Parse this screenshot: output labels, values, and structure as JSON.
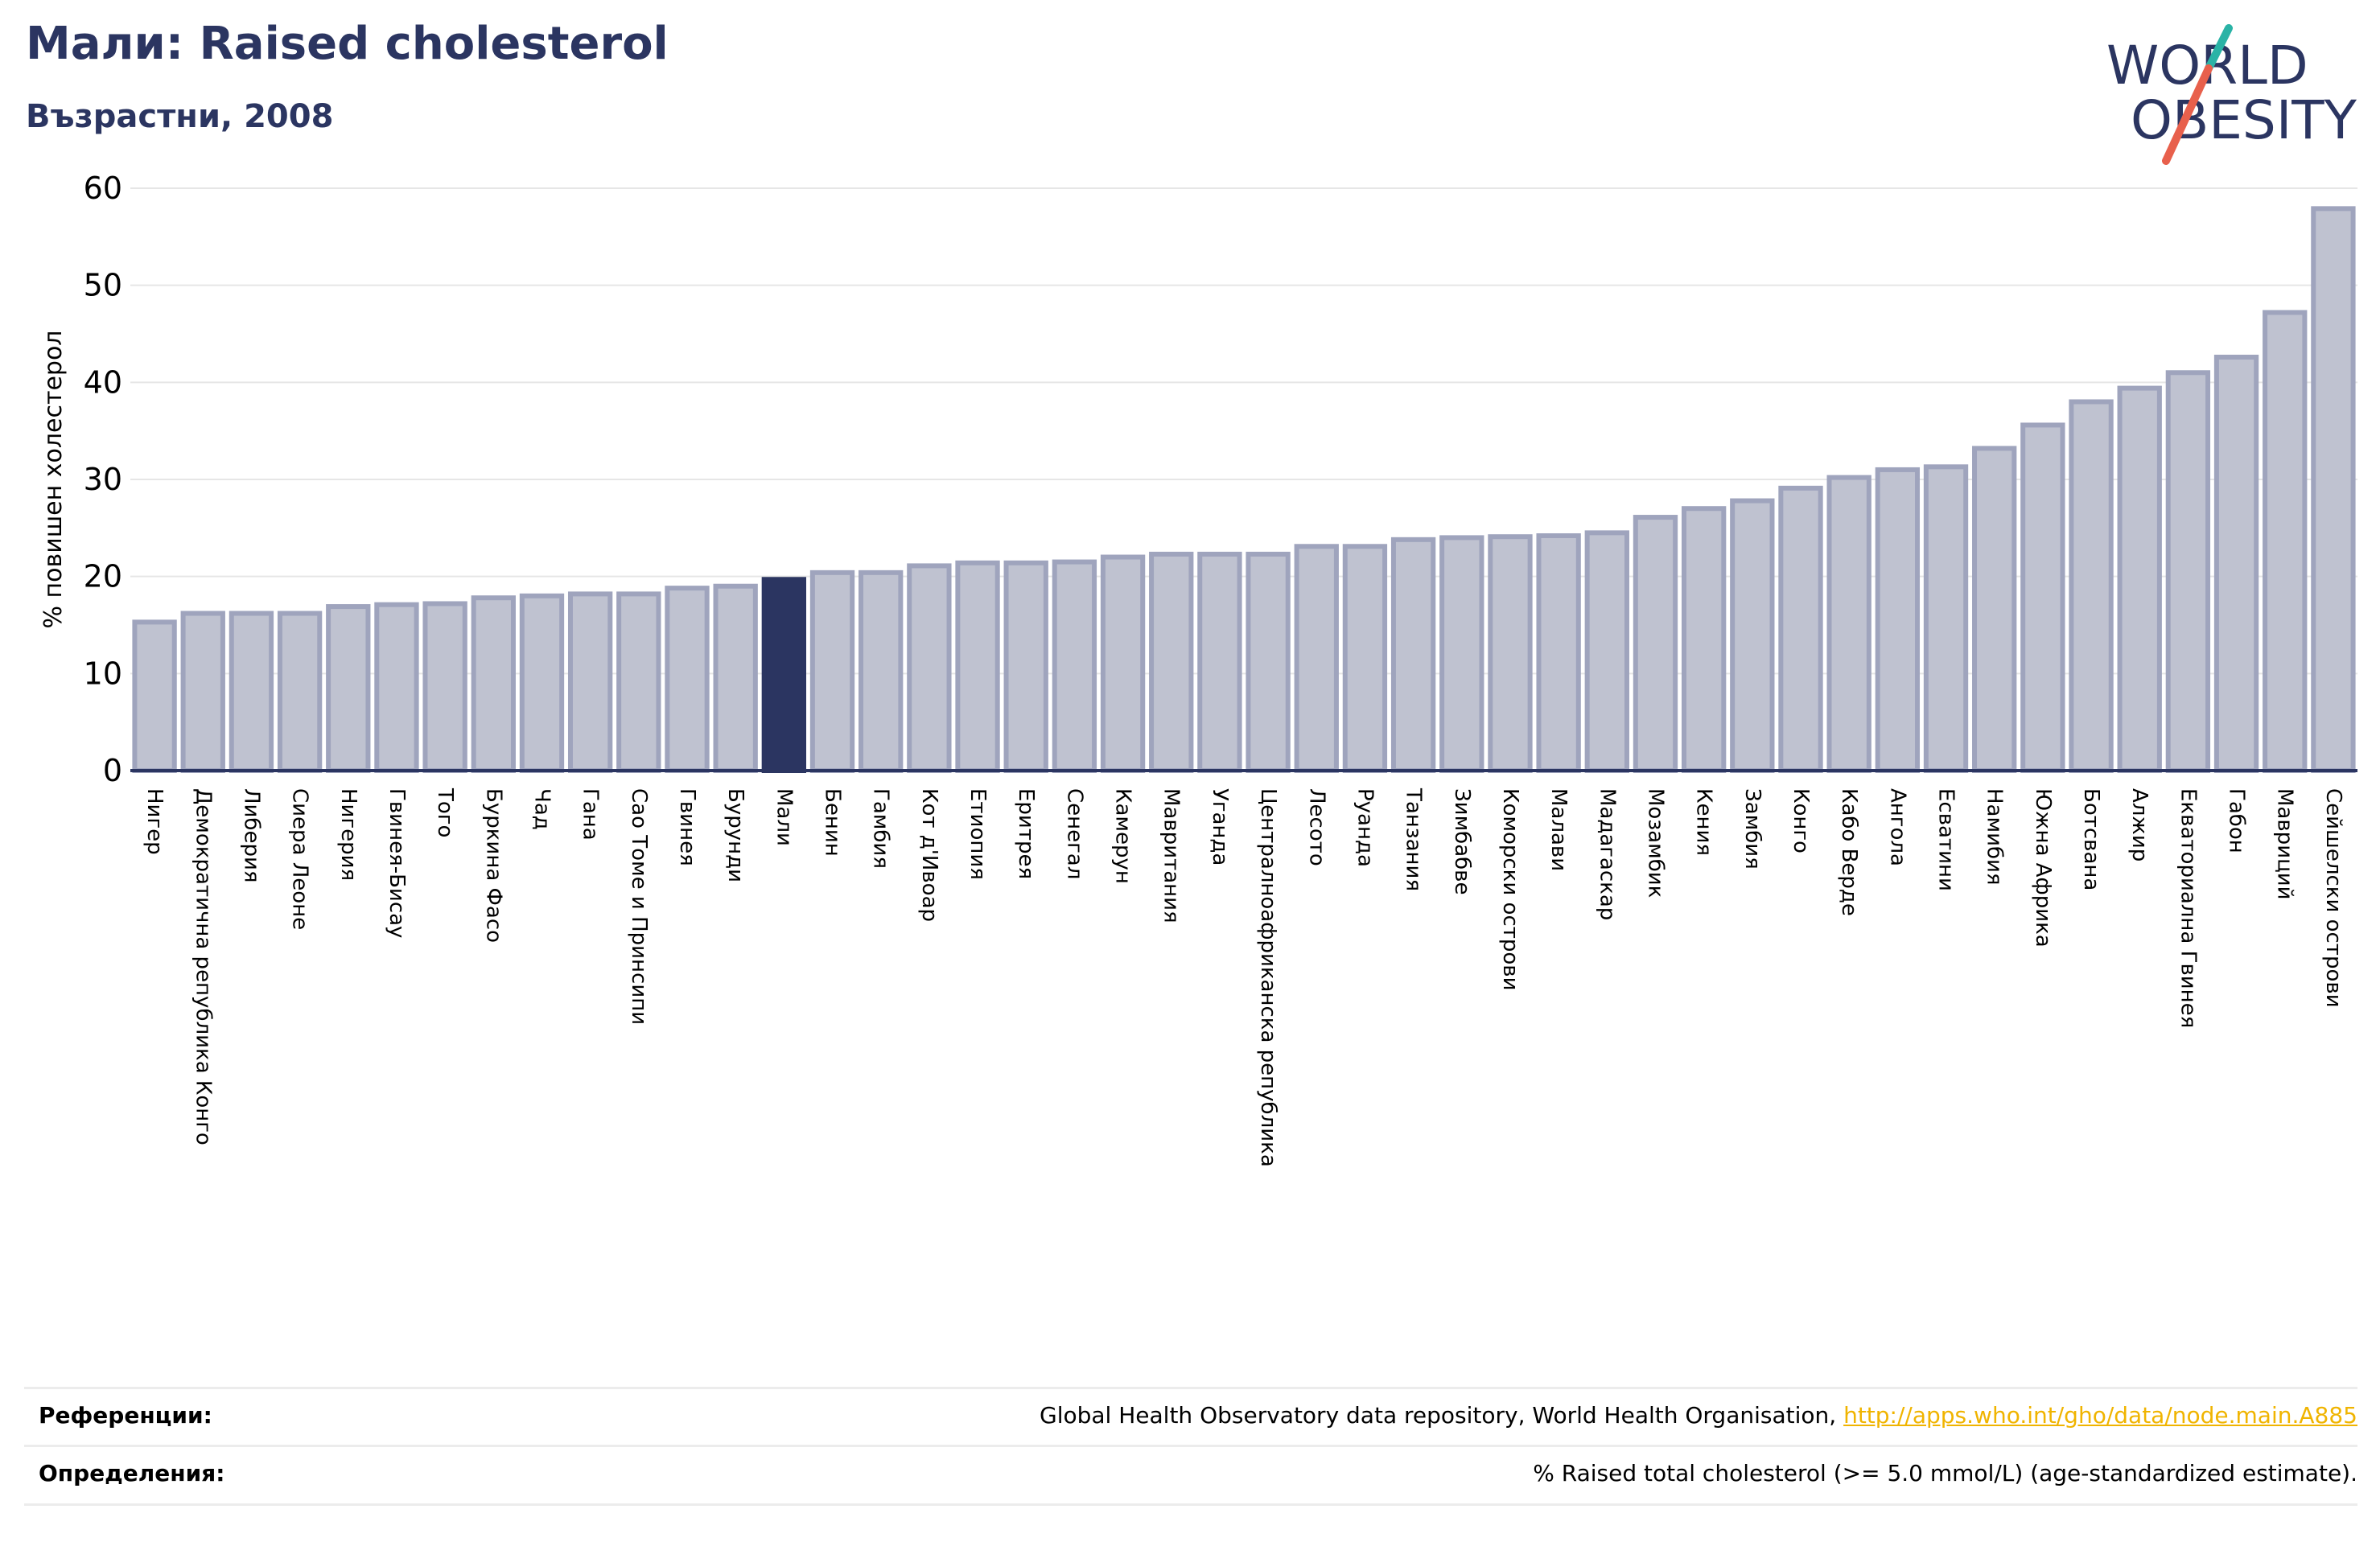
{
  "header": {
    "title": "Мали: Raised cholesterol",
    "subtitle": "Възрастни, 2008"
  },
  "logo": {
    "line1": "WORLD",
    "line2": "OBESITY",
    "colors": {
      "text": "#2b3561",
      "slash_top": "#2ab3a6",
      "slash_bottom": "#e8604c"
    }
  },
  "chart_data": {
    "type": "bar",
    "title": "Мали: Raised cholesterol",
    "subtitle": "Възрастни, 2008",
    "ylabel": "% повишен холестерол",
    "xlabel": "",
    "ylim": [
      0,
      60
    ],
    "yticks": [
      0,
      10,
      20,
      30,
      40,
      50,
      60
    ],
    "grid": true,
    "highlight": "Мали",
    "colors": {
      "bar": "#bfc2d0",
      "bar_edge": "#9fa4bd",
      "highlight": "#2b3561"
    },
    "categories": [
      "Нигер",
      "Демократична република Конго",
      "Либерия",
      "Сиера Леоне",
      "Нигерия",
      "Гвинея-Бисау",
      "Того",
      "Буркина Фасо",
      "Чад",
      "Гана",
      "Сао Томе и Принсипи",
      "Гвинея",
      "Бурунди",
      "Мали",
      "Бенин",
      "Гамбия",
      "Кот д'Ивоар",
      "Етиопия",
      "Еритрея",
      "Сенегал",
      "Камерун",
      "Мавритания",
      "Уганда",
      "Централноафриканска република",
      "Лесото",
      "Руанда",
      "Танзания",
      "Зимбабве",
      "Коморски острови",
      "Малави",
      "Мадагаскар",
      "Мозамбик",
      "Кения",
      "Замбия",
      "Конго",
      "Кабо Верде",
      "Ангола",
      "Есватини",
      "Намибия",
      "Южна Африка",
      "Ботсвана",
      "Алжир",
      "Екваториална Гвинея",
      "Габон",
      "Мавриций",
      "Сейшелски острови"
    ],
    "values": [
      15.3,
      16.2,
      16.2,
      16.2,
      16.9,
      17.1,
      17.2,
      17.8,
      18.0,
      18.2,
      18.2,
      18.8,
      19.0,
      19.7,
      20.4,
      20.4,
      21.1,
      21.4,
      21.4,
      21.5,
      22.0,
      22.3,
      22.3,
      22.3,
      23.1,
      23.1,
      23.8,
      24.0,
      24.1,
      24.2,
      24.5,
      26.1,
      27.0,
      27.8,
      29.1,
      30.2,
      31.0,
      31.3,
      33.2,
      35.6,
      38.0,
      39.4,
      41.0,
      42.6,
      47.2,
      57.9
    ]
  },
  "footer": {
    "references_label": "Референции:",
    "references_text": "Global Health Observatory data repository, World Health Organisation, ",
    "references_link": "http://apps.who.int/gho/data/node.main.A885",
    "definitions_label": "Определения:",
    "definitions_text": "% Raised total cholesterol (>= 5.0 mmol/L) (age-standardized estimate)."
  }
}
